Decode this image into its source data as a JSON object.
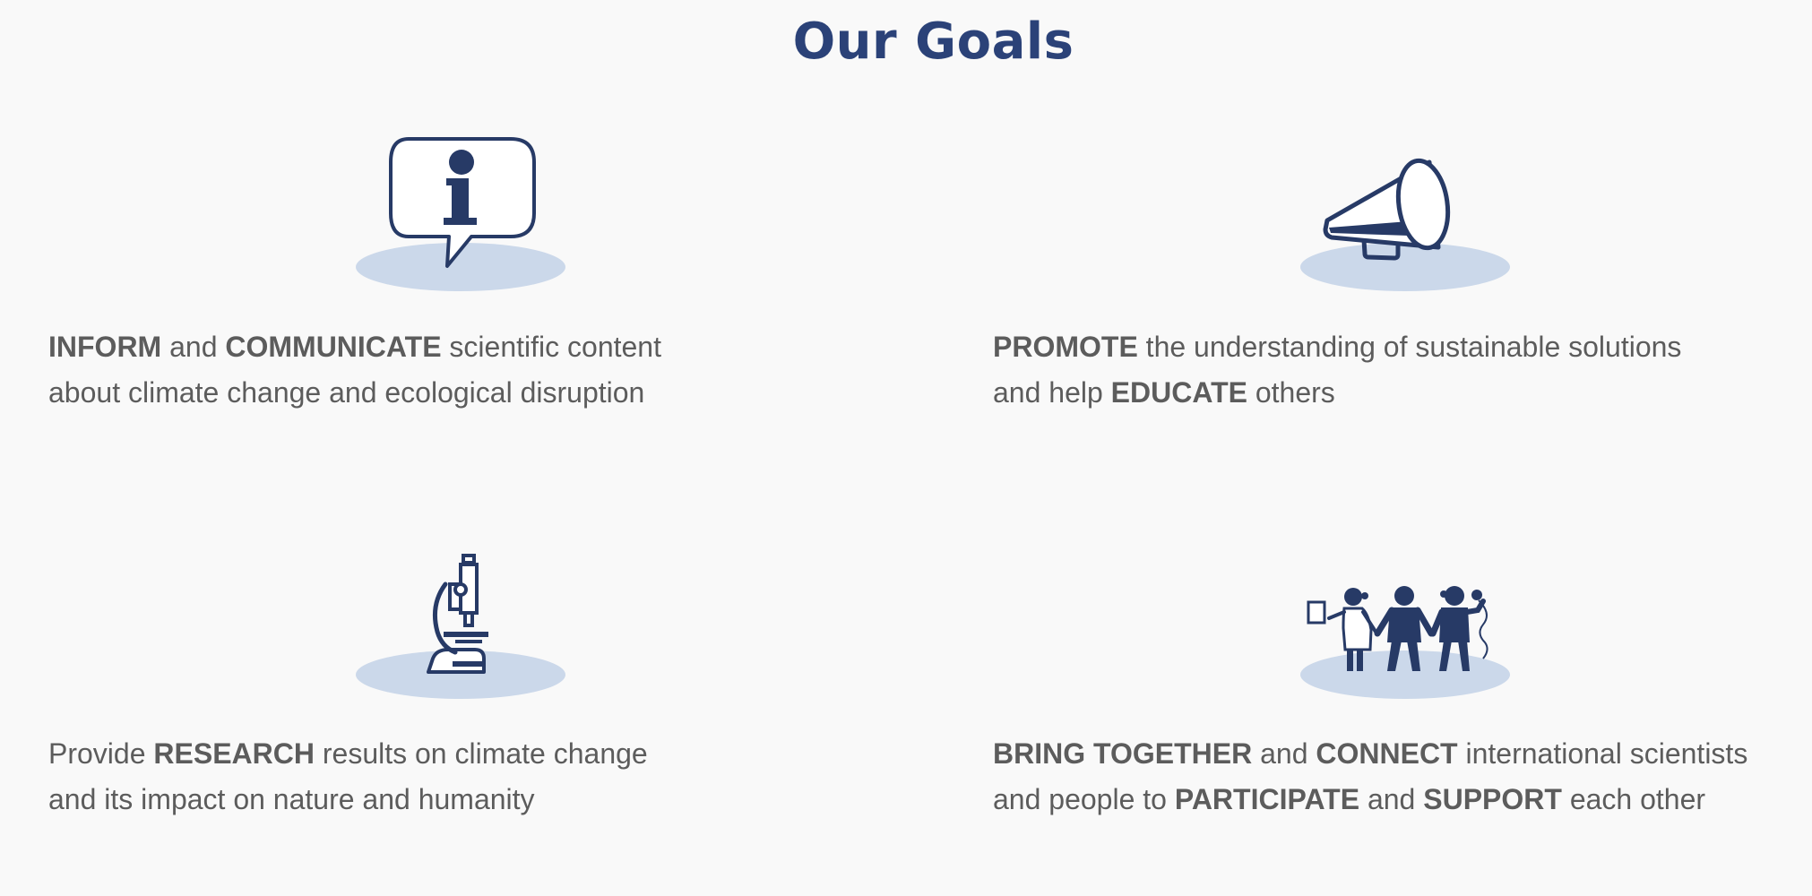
{
  "page": {
    "title": "Our Goals"
  },
  "colors": {
    "title": "#2b4278",
    "icon": "#273a66",
    "shadow": "#cbd8ea",
    "text": "#5c5c5c",
    "background": "#f9f9f9"
  },
  "goals": [
    {
      "icon": "info-speech-bubble-icon",
      "line1": [
        {
          "b": true,
          "t": "INFORM"
        },
        {
          "t": " and "
        },
        {
          "b": true,
          "t": "COMMUNICATE"
        },
        {
          "t": " scientific content"
        }
      ],
      "line2": [
        {
          "t": "about climate change and ecological disruption"
        }
      ]
    },
    {
      "icon": "megaphone-icon",
      "line1": [
        {
          "b": true,
          "t": "PROMOTE"
        },
        {
          "t": " the understanding of sustainable solutions"
        }
      ],
      "line2": [
        {
          "t": "and help "
        },
        {
          "b": true,
          "t": "EDUCATE"
        },
        {
          "t": " others"
        }
      ]
    },
    {
      "icon": "microscope-icon",
      "line1": [
        {
          "t": "Provide "
        },
        {
          "b": true,
          "t": "RESEARCH"
        },
        {
          "t": " results on climate change"
        }
      ],
      "line2": [
        {
          "t": "and its impact on nature and humanity"
        }
      ]
    },
    {
      "icon": "people-group-icon",
      "line1": [
        {
          "b": true,
          "t": "BRING TOGETHER"
        },
        {
          "t": " and "
        },
        {
          "b": true,
          "t": "CONNECT"
        },
        {
          "t": " international scientists"
        }
      ],
      "line2": [
        {
          "t": "and people to "
        },
        {
          "b": true,
          "t": "PARTICIPATE"
        },
        {
          "t": " and "
        },
        {
          "b": true,
          "t": "SUPPORT"
        },
        {
          "t": " each other"
        }
      ]
    }
  ]
}
